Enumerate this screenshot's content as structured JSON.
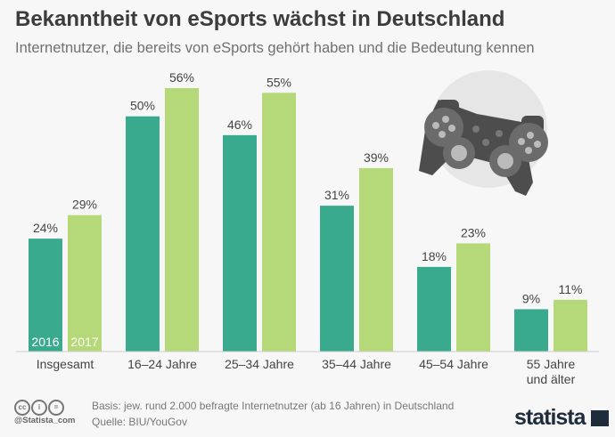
{
  "title": "Bekanntheit von eSports wächst in Deutschland",
  "subtitle": "Internetnutzer, die bereits von eSports gehört haben und die Bedeutung kennen",
  "footer": {
    "basis": "Basis: jew. rund 2.000 befragte Internetnutzer (ab 16 Jahren) in Deutschland",
    "source": "Quelle: BIU/YouGov",
    "handle": "@Statista_com",
    "logo": "statista"
  },
  "icons": [
    "cc-icon",
    "by-icon",
    "nd-icon",
    "gamepad-icon"
  ],
  "chart_data": {
    "type": "bar",
    "categories": [
      [
        "Insgesamt"
      ],
      [
        "16–24 Jahre"
      ],
      [
        "25–34 Jahre"
      ],
      [
        "35–44 Jahre"
      ],
      [
        "45–54 Jahre"
      ],
      [
        "55 Jahre",
        "und älter"
      ]
    ],
    "series": [
      {
        "name": "2016",
        "color": "#3aaa8e",
        "values": [
          24,
          50,
          46,
          31,
          18,
          9
        ]
      },
      {
        "name": "2017",
        "color": "#b5d878",
        "values": [
          29,
          56,
          55,
          39,
          23,
          11
        ]
      }
    ],
    "value_suffix": "%",
    "ylim": [
      0,
      56
    ],
    "grid": false,
    "legend": "inside-first-bars"
  }
}
